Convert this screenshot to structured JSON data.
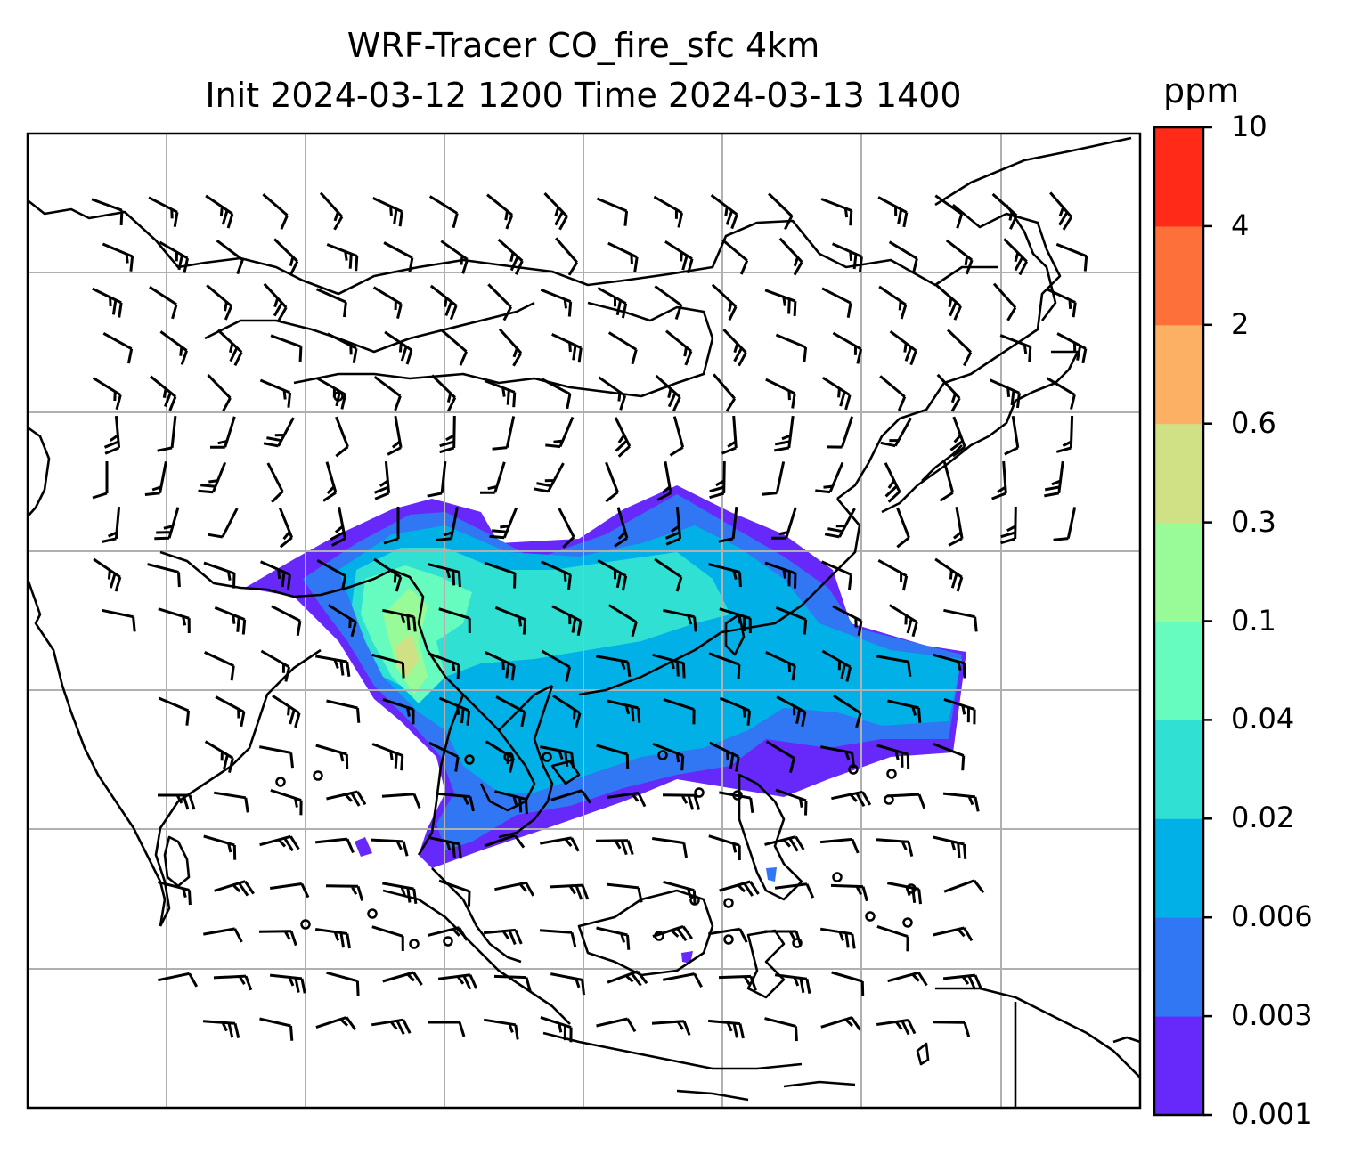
{
  "title_line1": "WRF-Tracer CO_fire_sfc 4km",
  "title_line2": "Init 2024-03-12 1200 Time 2024-03-13 1400",
  "colorbar": {
    "unit": "ppm",
    "levels": [
      "0.001",
      "0.003",
      "0.006",
      "0.02",
      "0.04",
      "0.1",
      "0.3",
      "0.6",
      "2",
      "4",
      "10"
    ],
    "colors": [
      "#6629fa",
      "#3176f2",
      "#00b0e6",
      "#2fe0d3",
      "#66fbbf",
      "#98fb98",
      "#d0e084",
      "#fcb064",
      "#fd703a",
      "#ff2b18"
    ]
  },
  "map": {
    "variable": "CO_fire_sfc",
    "grid_lines": true,
    "wind_barbs": true,
    "coastlines": true,
    "borders": true
  }
}
